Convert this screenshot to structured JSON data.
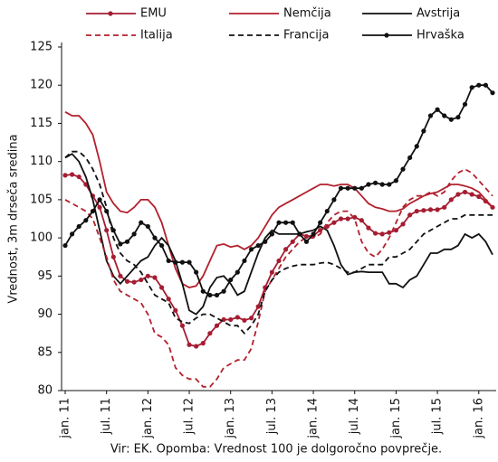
{
  "chart_data": {
    "type": "line",
    "y_label": "Vrednost, 3m drseča sredina",
    "footnote": "Vir: EK. Opomba: Vrednost 100 je dolgoročno povprečje.",
    "categories": [
      "jan. 11",
      null,
      null,
      null,
      null,
      null,
      "jul. 11",
      null,
      null,
      null,
      null,
      null,
      "jan. 12",
      null,
      null,
      null,
      null,
      null,
      "jul. 12",
      null,
      null,
      null,
      null,
      null,
      "jan. 13",
      null,
      null,
      null,
      null,
      null,
      "jul. 13",
      null,
      null,
      null,
      null,
      null,
      "jan. 14",
      null,
      null,
      null,
      null,
      null,
      "jul. 14",
      null,
      null,
      null,
      null,
      null,
      "jan. 15",
      null,
      null,
      null,
      null,
      null,
      "jul. 15",
      null,
      null,
      null,
      null,
      null,
      "jan. 16",
      null,
      null
    ],
    "ylim": [
      80,
      125
    ],
    "yticks": [
      80,
      85,
      90,
      95,
      100,
      105,
      110,
      115,
      120,
      125
    ],
    "series": [
      {
        "name": "EMU",
        "color": "#a51d32",
        "dash": false,
        "markers": true,
        "values": [
          108.2,
          108.3,
          108,
          107,
          105.5,
          104,
          101,
          97.5,
          95,
          94.3,
          94.2,
          94.5,
          95,
          94.8,
          93.5,
          92,
          90.5,
          88.5,
          86,
          85.8,
          86.2,
          87.5,
          88.5,
          89.3,
          89.3,
          89.6,
          89.2,
          89.5,
          91,
          93.5,
          95.5,
          97,
          98.5,
          99.5,
          100.5,
          100.2,
          100.3,
          101,
          101.5,
          102,
          102.5,
          102.5,
          102.7,
          102.3,
          101.3,
          100.6,
          100.5,
          100.7,
          101,
          101.8,
          103,
          103.5,
          103.6,
          103.7,
          103.7,
          104,
          105,
          105.7,
          106,
          105.7,
          105.4,
          104.8,
          104
        ]
      },
      {
        "name": "Nemčija",
        "color": "#b3202d",
        "dash": false,
        "markers": false,
        "values": [
          116.5,
          116,
          116,
          115,
          113.5,
          110,
          106,
          104.5,
          103.5,
          103.3,
          104,
          105,
          105,
          104,
          102,
          99,
          96,
          94,
          93.5,
          93.7,
          95,
          97,
          99,
          99.2,
          98.8,
          99,
          98.5,
          99,
          100,
          101.5,
          103,
          104,
          104.5,
          105,
          105.5,
          106,
          106.5,
          107,
          107,
          106.8,
          107,
          107,
          106.5,
          105.5,
          104.5,
          104,
          103.8,
          103.5,
          103.5,
          103.8,
          104.5,
          105,
          105.5,
          105.8,
          106,
          106.5,
          107,
          107,
          106.8,
          106.5,
          106,
          105,
          104
        ]
      },
      {
        "name": "Avstrija",
        "color": "#111111",
        "dash": false,
        "markers": false,
        "values": [
          110.5,
          111,
          110,
          108,
          105,
          101,
          97,
          95,
          94,
          95,
          96,
          97,
          97.5,
          99,
          100,
          99,
          97,
          94,
          90.5,
          90,
          91,
          93.5,
          94.8,
          95,
          94,
          92.5,
          93,
          95.5,
          98,
          100,
          101,
          100.5,
          100.5,
          100.5,
          100.5,
          100.8,
          101,
          101.5,
          101,
          99,
          96.5,
          95.2,
          95.5,
          95.6,
          95.5,
          95.5,
          95.5,
          94,
          94,
          93.5,
          94.5,
          95,
          96.5,
          98,
          98,
          98.5,
          98.5,
          99,
          100.5,
          100,
          100.5,
          99.5,
          97.8
        ]
      },
      {
        "name": "Italija",
        "color": "#b3202d",
        "dash": true,
        "markers": false,
        "values": [
          105,
          104.5,
          104,
          103.5,
          102.5,
          100,
          97.5,
          94.5,
          93,
          92.5,
          92,
          91.5,
          90,
          87.5,
          87,
          86,
          83,
          82,
          81.5,
          81.5,
          80.5,
          80.5,
          81.5,
          83,
          83.5,
          84,
          84,
          85.5,
          89,
          93,
          94.5,
          96,
          97.5,
          98.5,
          99.5,
          100,
          100,
          100.5,
          102,
          103,
          103.5,
          103.5,
          102.5,
          99.5,
          98,
          97.5,
          98.5,
          100,
          102,
          104,
          105,
          105.5,
          105.5,
          106,
          105.5,
          106,
          107.5,
          108.5,
          109,
          108.5,
          107.5,
          106.5,
          105.5
        ]
      },
      {
        "name": "Francija",
        "color": "#111111",
        "dash": true,
        "markers": false,
        "values": [
          110.5,
          111.3,
          111.3,
          110.5,
          109,
          107,
          104,
          100,
          98,
          97,
          96.5,
          95.5,
          94,
          92.5,
          92,
          91.5,
          89.5,
          89,
          88.8,
          89.5,
          90,
          90,
          89.5,
          89,
          88.5,
          88.5,
          87.5,
          88.5,
          90,
          93,
          94.5,
          95.5,
          96,
          96.3,
          96.5,
          96.5,
          96.5,
          96.7,
          96.8,
          96.5,
          96,
          95.5,
          95.5,
          96,
          96.5,
          96.5,
          96.5,
          97.5,
          97.5,
          98,
          98.5,
          99.5,
          100.5,
          101,
          101.5,
          102,
          102.5,
          102.5,
          103,
          103,
          103,
          103,
          103
        ]
      },
      {
        "name": "Hrvaška",
        "color": "#111111",
        "dash": false,
        "markers": true,
        "values": [
          99,
          100.5,
          101.5,
          102.3,
          103.5,
          105,
          103.5,
          101,
          99.2,
          99.5,
          100.5,
          102,
          101.5,
          100,
          99,
          97,
          96.8,
          96.8,
          96.8,
          95.5,
          93,
          92.5,
          92.5,
          93,
          94.5,
          95.5,
          97,
          98.5,
          99,
          99.5,
          100.5,
          102,
          102,
          102,
          100.5,
          99.5,
          100.5,
          102,
          103.5,
          105,
          106.5,
          106.5,
          106.5,
          106.5,
          107,
          107.2,
          107,
          107,
          107.5,
          109,
          110.5,
          112,
          114,
          116,
          116.8,
          116,
          115.5,
          115.8,
          117.5,
          119.7,
          120,
          120,
          119
        ]
      }
    ]
  }
}
